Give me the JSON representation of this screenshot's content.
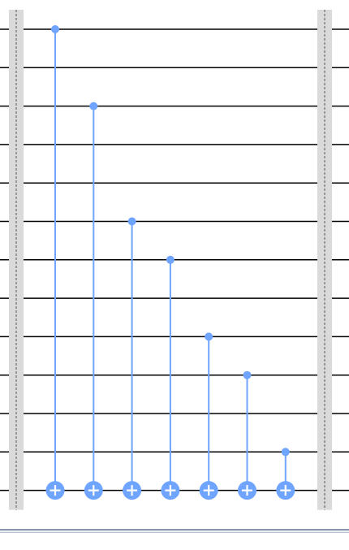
{
  "circuit": {
    "qubit_count": 13,
    "gates": [
      {
        "type": "cnot",
        "control": 0,
        "target": 12
      },
      {
        "type": "cnot",
        "control": 2,
        "target": 12
      },
      {
        "type": "cnot",
        "control": 5,
        "target": 12
      },
      {
        "type": "cnot",
        "control": 6,
        "target": 12
      },
      {
        "type": "cnot",
        "control": 8,
        "target": 12
      },
      {
        "type": "cnot",
        "control": 9,
        "target": 12
      },
      {
        "type": "cnot",
        "control": 11,
        "target": 12
      }
    ],
    "barriers": 2,
    "colors": {
      "wire": "#000000",
      "gate": "#6fa4ff",
      "barrier_fill": "#dadada",
      "barrier_line": "#555555"
    }
  }
}
